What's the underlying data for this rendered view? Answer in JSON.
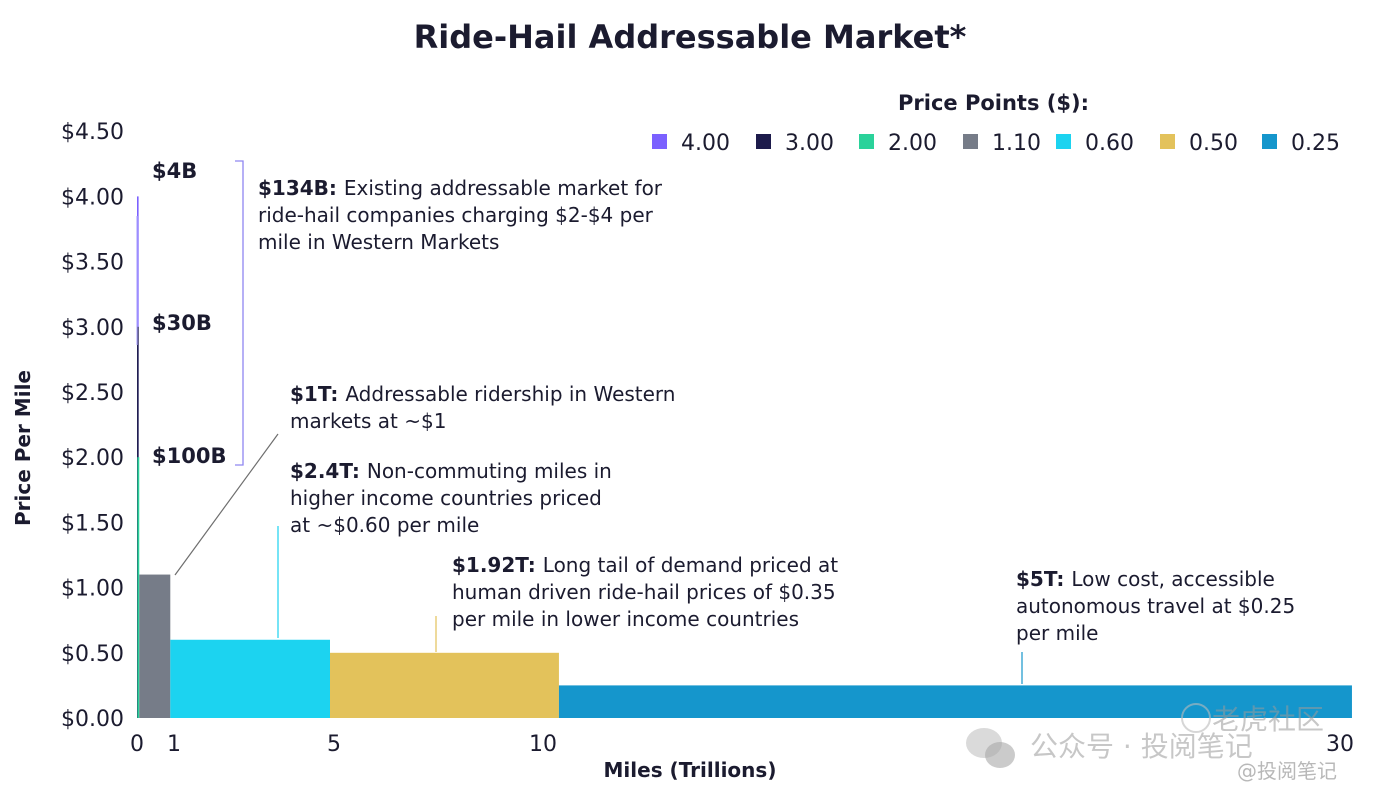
{
  "chart_data": {
    "type": "bar",
    "title": "Ride-Hail Addressable Market*",
    "xlabel": "Miles (Trillions)",
    "ylabel": "Price Per Mile",
    "xlim": [
      0,
      30
    ],
    "ylim": [
      0,
      4.5
    ],
    "x_ticks": [
      0,
      1,
      5,
      10,
      30
    ],
    "y_ticks": [
      0,
      0.5,
      1.0,
      1.5,
      2.0,
      2.5,
      3.0,
      3.5,
      4.0,
      4.5
    ],
    "y_tick_labels": [
      "$0.00",
      "$0.50",
      "$1.00",
      "$1.50",
      "$2.00",
      "$2.50",
      "$3.00",
      "$3.50",
      "$4.00",
      "$4.50"
    ],
    "legend_title": "Price Points ($):",
    "legend_position": "top-right",
    "series": [
      {
        "name": "4.00",
        "color": "#7b61ff",
        "x_start": 0.0,
        "x_end": 0.001,
        "price": 4.0
      },
      {
        "name": "3.00",
        "color": "#1d1b4b",
        "x_start": 0.001,
        "x_end": 0.011,
        "price": 3.0
      },
      {
        "name": "2.00",
        "color": "#2ad29a",
        "x_start": 0.011,
        "x_end": 0.061,
        "price": 2.0
      },
      {
        "name": "1.10",
        "color": "#767c88",
        "x_start": 0.061,
        "x_end": 0.9,
        "price": 1.1
      },
      {
        "name": "0.60",
        "color": "#1cd3f0",
        "x_start": 0.9,
        "x_end": 4.9,
        "price": 0.6
      },
      {
        "name": "0.50",
        "color": "#e3c25b",
        "x_start": 4.9,
        "x_end": 10.4,
        "price": 0.5
      },
      {
        "name": "0.25",
        "color": "#1596cc",
        "x_start": 10.4,
        "x_end": 30.3,
        "price": 0.25
      }
    ],
    "bracket_labels": [
      "$4B",
      "$30B",
      "$100B"
    ],
    "annotations": [
      {
        "bold": "$134B:",
        "text": [
          "Existing addressable market for",
          "ride-hail companies charging $2-$4 per",
          "mile in Western Markets"
        ]
      },
      {
        "bold": "$1T:",
        "text": [
          "Addressable ridership in Western",
          "markets at ~$1"
        ]
      },
      {
        "bold": "$2.4T:",
        "text": [
          "Non-commuting miles in",
          "higher income countries priced",
          "at ~$0.60 per mile"
        ]
      },
      {
        "bold": "$1.92T:",
        "text": [
          " Long tail of demand priced at",
          "human driven ride-hail prices of $0.35",
          "per mile in lower income countries"
        ]
      },
      {
        "bold": "$5T:",
        "text": [
          "Low cost, accessible",
          "autonomous travel at $0.25",
          "per mile"
        ]
      }
    ]
  },
  "watermark": {
    "main": "公众号 · 投阅笔记",
    "overlay": "老虎社区",
    "handle": "@投阅笔记"
  }
}
